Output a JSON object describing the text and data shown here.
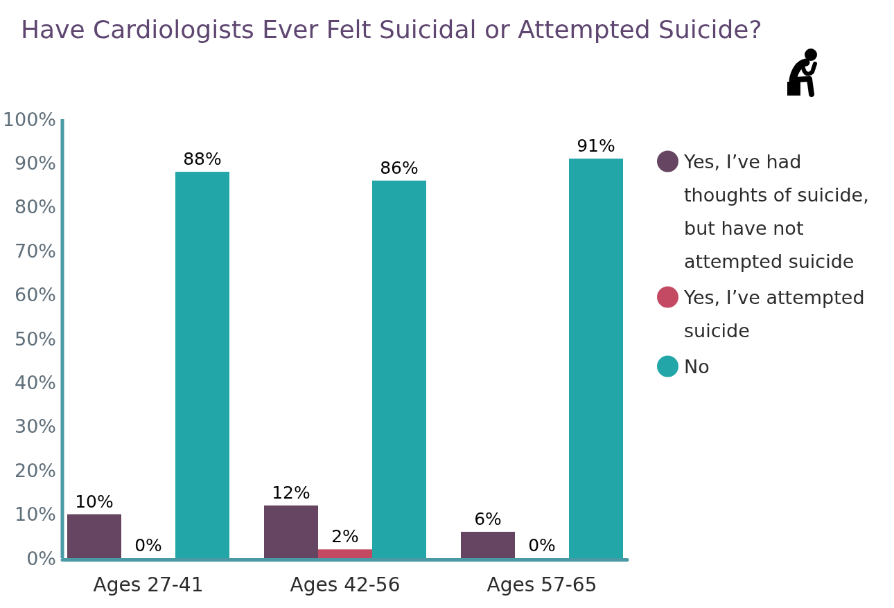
{
  "chart_data": {
    "type": "bar",
    "title": "Have Cardiologists Ever Felt Suicidal or Attempted Suicide?",
    "categories": [
      "Ages 27-41",
      "Ages 42-56",
      "Ages 57-65"
    ],
    "series": [
      {
        "name": "Yes, I’ve had thoughts of suicide, but have not attempted suicide",
        "color": "#654561",
        "values": [
          10,
          12,
          6
        ],
        "value_labels": [
          "10%",
          "12%",
          "6%"
        ]
      },
      {
        "name": "Yes, I’ve attempted suicide",
        "color": "#c44a64",
        "values": [
          0,
          2,
          0
        ],
        "value_labels": [
          "0%",
          "2%",
          "0%"
        ]
      },
      {
        "name": "No",
        "color": "#22a6a8",
        "values": [
          88,
          86,
          91
        ],
        "value_labels": [
          "88%",
          "86%",
          "91%"
        ]
      }
    ],
    "ylim": [
      0,
      100
    ],
    "yticks": [
      {
        "value": 0,
        "label": "0%"
      },
      {
        "value": 10,
        "label": "10%"
      },
      {
        "value": 20,
        "label": "20%"
      },
      {
        "value": 30,
        "label": "30%"
      },
      {
        "value": 40,
        "label": "40%"
      },
      {
        "value": 50,
        "label": "50%"
      },
      {
        "value": 60,
        "label": "60%"
      },
      {
        "value": 70,
        "label": "70%"
      },
      {
        "value": 80,
        "label": "80%"
      },
      {
        "value": 90,
        "label": "90%"
      },
      {
        "value": 100,
        "label": "100%"
      }
    ],
    "legend": "right"
  }
}
